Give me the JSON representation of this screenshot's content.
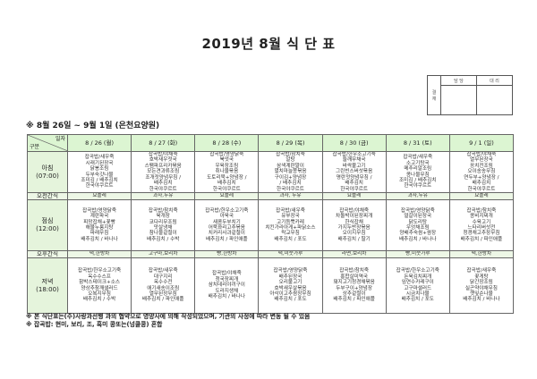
{
  "title": "2019년 8월 식 단 표",
  "approval": {
    "label": "결\n재",
    "col1": "담 당",
    "col2": "대 리"
  },
  "subtitle": "※ 8월 26일 ~ 9월 1일 (은천요양원)",
  "corner": {
    "top": "일자",
    "bottom": "구분"
  },
  "days": [
    "8 / 26 (월)",
    "8 / 27 (화)",
    "8 / 28 (수)",
    "8 / 29 (목)",
    "8 / 30 (금)",
    "8 / 31 (토)",
    "9 / 1 (일)"
  ],
  "rows": [
    {
      "label": [
        "아침",
        "(07:00)"
      ],
      "type": "meal",
      "cells": [
        [
          "잡곡밥/새우죽",
          "시래기된장국",
          "닭봉조림",
          "두부숙갓나물",
          "조미김 / 배추김치",
          "한국야쿠르트"
        ],
        [
          "잡곡밥/야채죽",
          "호박새우젓국",
          "스팸파프리카볶음",
          "모든견과류조림",
          "조개젓양념무침 /",
          "배추김치",
          "한국야쿠르트"
        ],
        [
          "잡곡밥/영양닭죽",
          "북엇국",
          "우육장조림",
          "취나물볶음",
          "도토리묵+양념장 /",
          "배추김치",
          "한국야쿠르트"
        ],
        [
          "잡곡밥/참치죽",
          "알탕",
          "삼색계란말이",
          "멸치마늘쫑볶음",
          "구이김+양념장",
          "/ 배추김치",
          "한국야쿠르트"
        ],
        [
          "잡곡밥/한우소고기죽",
          "들깨무채국",
          "바싹불고기",
          "그린빈스버섯볶음",
          "명란젓양념무침 /",
          "배추김치",
          "한국야쿠르트"
        ],
        [
          "잡곡밥/새우죽",
          "소고기탕국",
          "메추리알조림",
          "콩나물무침",
          "조미김 / 배추김치",
          "한국야쿠르트"
        ],
        [
          "잡곡밥/야채죽",
          "열무된장국",
          "꽁치전조림",
          "오이송송무침",
          "연두부+양념장 /",
          "배추김치",
          "한국야쿠르트"
        ]
      ]
    },
    {
      "label": [
        "오전간식"
      ],
      "type": "snack",
      "cells": [
        [
          "요플레"
        ],
        [
          "과자,두유"
        ],
        [
          "요플레"
        ],
        [
          "과자, 두유"
        ],
        [
          "요플레"
        ],
        [
          "과자,두유"
        ],
        [
          "요플레"
        ]
      ]
    },
    {
      "label": [
        "점심",
        "(12:00)"
      ],
      "type": "meal",
      "cells": [
        [
          "잡곡밥/영양닭죽",
          "계란파국",
          "피망잡채+꽃빵",
          "해물누룽지탕",
          "파래무침",
          "배추김치 / 바나나"
        ],
        [
          "잡곡밥/참치죽",
          "육개장",
          "코다리무조림",
          "맛살냉채",
          "참나물겉절이",
          "배추김치 / 수박"
        ],
        [
          "잡곡밥/한우소고기죽",
          "아욱국",
          "새콤두부치기",
          "어묵꽈리고추볶음",
          "치커리사과겉절이",
          "배추김치 / 파인애플"
        ],
        [
          "잡곡밥/새우죽",
          "유부장국",
          "고기듬뿍카레",
          "치킨가라아게+파닭소스",
          "락교무침",
          "배추김치 / 포도"
        ],
        [
          "잡곡밥/야채죽",
          "차돌박이된장찌개",
          "한식잡채",
          "가지두반장볶음",
          "오이지무침",
          "배추김치 / 딸기"
        ],
        [
          "잡곡밥/영양닭죽",
          "얼갈이된장국",
          "닭도리탕",
          "우엉채조림",
          "양배추숙쌈+쌈장",
          "배추김치 / 바나나"
        ],
        [
          "잡곡밥/참치죽",
          "콩비지찌개",
          "수육고기",
          "느타리버섯전",
          "청경채고추장무침",
          "배추김치 / 파인애플"
        ]
      ]
    },
    {
      "label": [
        "오후간식"
      ],
      "type": "snack",
      "cells": [
        [
          "떡,한방차"
        ],
        [
          "고구마,보리차"
        ],
        [
          "빵,한방차"
        ],
        [
          "떡,미숫가루"
        ],
        [
          "라면,보리차"
        ],
        [
          "빵,미숫가루"
        ],
        [
          "떡,한방차"
        ]
      ]
    },
    {
      "label": [
        "저녁",
        "(18:00)"
      ],
      "type": "meal",
      "cells": [
        [
          "잡곡밥/한우소고기죽",
          "옥수수스프",
          "함박스테이크+소스",
          "양상추참깨샐러드",
          "오복지무침",
          "배추김치 / 수박"
        ],
        [
          "잡곡밥/새우죽",
          "대구지리",
          "옥수수전",
          "애기새송이조림",
          "열무된장무침",
          "배추김치 / 파인애플"
        ],
        [
          "잡곡밥/야채죽",
          "청국장찌개",
          "삼치데리야끼구이",
          "도라지생채",
          "배추김치 / 바나나"
        ],
        [
          "잡곡밥/영양닭죽",
          "배추된장국",
          "오리불고기",
          "호박새우살볶음",
          "아삭이고추쌈장무침",
          "배추김치 / 포도"
        ],
        [
          "잡곡밥/참치죽",
          "홍합살미역국",
          "돼지고기청경채볶음",
          "두부구이+양념장",
          "상추겉절이",
          "배추김치 / 파인애플"
        ],
        [
          "잡곡밥/한우소고기죽",
          "돈육김치찌개",
          "임연수카레구이",
          "고구마샐러드",
          "시금치나물",
          "배추김치 / 포도"
        ],
        [
          "잡곡밥/새우죽",
          "꽃게탕",
          "닭간장조림",
          "실곤약야채무침",
          "깻잎순나물",
          "배추김치 / 바나나"
        ]
      ]
    }
  ],
  "notes": [
    "※ 본 식단표는(주)사랑과선행 과의 협약으로 영양사에 의해 작성되었으며, 기관의 사정에 따라 변동 될 수 있음",
    "※ 잡곡밥: 현미, 보리, 조, 흑미 콩또는(넝쿨콩) 혼합"
  ]
}
